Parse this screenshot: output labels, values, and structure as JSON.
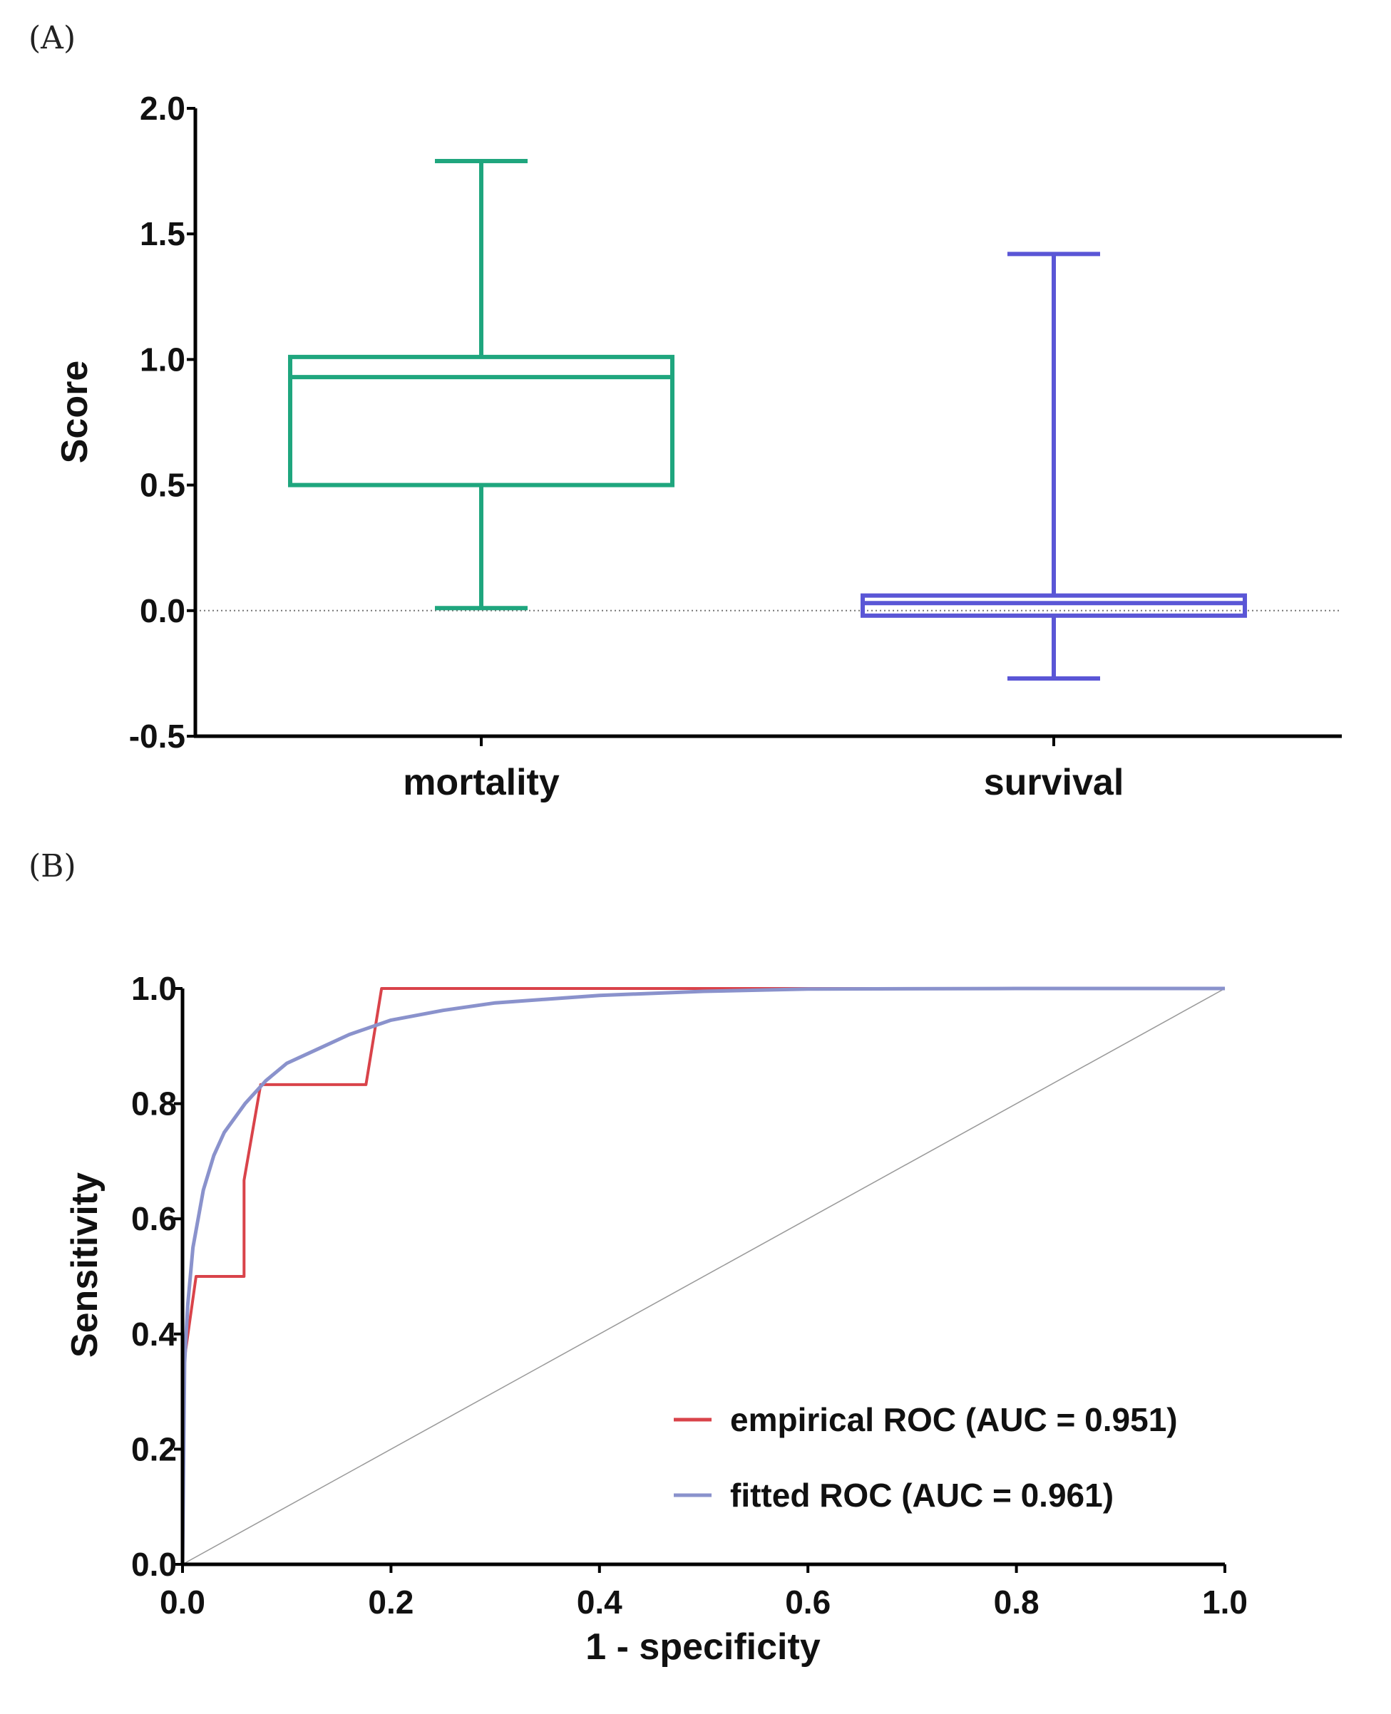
{
  "chart_data": [
    {
      "type": "box",
      "panel_label": "(A)",
      "ylabel": "Score",
      "xlabel": "",
      "ylim": [
        -0.5,
        2.0
      ],
      "yticks": [
        "2.0",
        "1.5",
        "1.0",
        "0.5",
        "0.0",
        "-0.5"
      ],
      "ytick_values": [
        2.0,
        1.5,
        1.0,
        0.5,
        0.0,
        -0.5
      ],
      "reference_line": 0.0,
      "categories": [
        "mortality",
        "survival"
      ],
      "boxes": [
        {
          "name": "mortality",
          "min": 0.01,
          "q1": 0.5,
          "median": 0.93,
          "q3": 1.01,
          "max": 1.79,
          "color": "#1fa67e"
        },
        {
          "name": "survival",
          "min": -0.27,
          "q1": -0.02,
          "median": 0.03,
          "q3": 0.06,
          "max": 1.42,
          "color": "#5a56d6"
        }
      ]
    },
    {
      "type": "line",
      "panel_label": "(B)",
      "xlabel": "1 - specificity",
      "ylabel": "Sensitivity",
      "xlim": [
        0,
        1
      ],
      "ylim": [
        0,
        1
      ],
      "xticks": [
        "0.0",
        "0.2",
        "0.4",
        "0.6",
        "0.8",
        "1.0"
      ],
      "yticks": [
        "0.0",
        "0.2",
        "0.4",
        "0.6",
        "0.8",
        "1.0"
      ],
      "tick_values": [
        0,
        0.2,
        0.4,
        0.6,
        0.8,
        1.0
      ],
      "legend_position": "bottom-right",
      "series": [
        {
          "name": "empirical ROC (AUC = 0.951)",
          "color": "#d9434a",
          "x": [
            0,
            0,
            0.013,
            0.059,
            0.059,
            0.075,
            0.176,
            0.191,
            1.0
          ],
          "y": [
            0,
            0.333,
            0.5,
            0.5,
            0.667,
            0.833,
            0.833,
            1.0,
            1.0
          ]
        },
        {
          "name": "fitted ROC (AUC = 0.961)",
          "color": "#8a92cc",
          "x": [
            0,
            0.002,
            0.005,
            0.01,
            0.02,
            0.03,
            0.04,
            0.06,
            0.08,
            0.1,
            0.13,
            0.16,
            0.2,
            0.25,
            0.3,
            0.4,
            0.5,
            0.6,
            0.8,
            1.0
          ],
          "y": [
            0,
            0.35,
            0.45,
            0.55,
            0.65,
            0.71,
            0.75,
            0.8,
            0.84,
            0.87,
            0.895,
            0.92,
            0.945,
            0.962,
            0.975,
            0.988,
            0.995,
            0.999,
            1.0,
            1.0
          ]
        },
        {
          "name": "chance",
          "color": "#999999",
          "x": [
            0,
            1
          ],
          "y": [
            0,
            1
          ]
        }
      ]
    }
  ]
}
